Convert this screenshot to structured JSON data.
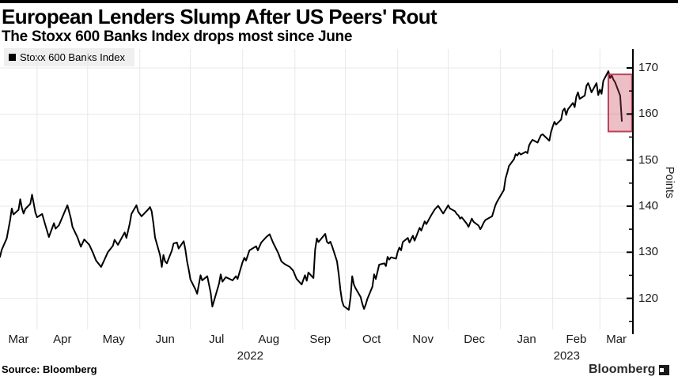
{
  "header": {
    "title": "European Lenders Slump After US Peers' Rout",
    "subtitle": "The Stoxx 600 Banks Index drops most since June"
  },
  "footer": {
    "source": "Source: Bloomberg",
    "brand": "Bloomberg"
  },
  "colors": {
    "line": "#000000",
    "grid": "#e8e8e8",
    "axis": "#000000",
    "legend_bg": "#efefef",
    "highlight_fill": "rgba(197,62,84,0.33)",
    "highlight_border": "#bc4257"
  },
  "chart_data": {
    "type": "line",
    "title": "European Lenders Slump After US Peers' Rout",
    "subtitle": "The Stoxx 600 Banks Index drops most since June",
    "ylabel": "Points",
    "yticks": [
      120,
      130,
      140,
      150,
      160,
      170
    ],
    "yticks_minor": [
      115,
      125,
      135,
      145,
      155,
      165
    ],
    "ylim": [
      113,
      174
    ],
    "xlim": [
      "2022-03-10",
      "2023-03-14"
    ],
    "xticks_months": [
      "Mar",
      "Apr",
      "May",
      "Jun",
      "Jul",
      "Aug",
      "Sep",
      "Oct",
      "Nov",
      "Dec",
      "Jan",
      "Feb",
      "Mar"
    ],
    "year_labels": [
      "2022",
      "2023"
    ],
    "grid": true,
    "legend_position": "top-left",
    "highlight_box": {
      "from": "2023-03-06",
      "to": "2023-03-20",
      "value_top": 168.6,
      "value_bottom": 156.2
    },
    "series": [
      {
        "name": "Stoxx 600 Banks Index",
        "color": "#000000",
        "points": [
          [
            "2022-03-10",
            129.0
          ],
          [
            "2022-03-11",
            130.5
          ],
          [
            "2022-03-14",
            133.0
          ],
          [
            "2022-03-16",
            137.0
          ],
          [
            "2022-03-17",
            139.5
          ],
          [
            "2022-03-18",
            138.2
          ],
          [
            "2022-03-21",
            139.2
          ],
          [
            "2022-03-22",
            141.5
          ],
          [
            "2022-03-23",
            139.6
          ],
          [
            "2022-03-24",
            138.4
          ],
          [
            "2022-03-25",
            139.4
          ],
          [
            "2022-03-28",
            140.5
          ],
          [
            "2022-03-29",
            142.5
          ],
          [
            "2022-03-30",
            140.6
          ],
          [
            "2022-03-31",
            138.6
          ],
          [
            "2022-04-01",
            137.6
          ],
          [
            "2022-04-04",
            138.3
          ],
          [
            "2022-04-06",
            135.8
          ],
          [
            "2022-04-08",
            133.3
          ],
          [
            "2022-04-11",
            136.3
          ],
          [
            "2022-04-12",
            135.1
          ],
          [
            "2022-04-14",
            135.9
          ],
          [
            "2022-04-19",
            140.2
          ],
          [
            "2022-04-21",
            137.4
          ],
          [
            "2022-04-22",
            135.5
          ],
          [
            "2022-04-25",
            133.2
          ],
          [
            "2022-04-27",
            131.2
          ],
          [
            "2022-04-29",
            132.8
          ],
          [
            "2022-05-02",
            131.6
          ],
          [
            "2022-05-04",
            130.0
          ],
          [
            "2022-05-06",
            128.2
          ],
          [
            "2022-05-09",
            126.8
          ],
          [
            "2022-05-11",
            128.4
          ],
          [
            "2022-05-13",
            130.0
          ],
          [
            "2022-05-16",
            131.4
          ],
          [
            "2022-05-17",
            132.7
          ],
          [
            "2022-05-19",
            131.6
          ],
          [
            "2022-05-23",
            134.3
          ],
          [
            "2022-05-24",
            133.1
          ],
          [
            "2022-05-26",
            136.2
          ],
          [
            "2022-05-27",
            138.3
          ],
          [
            "2022-05-30",
            140.2
          ],
          [
            "2022-05-31",
            138.8
          ],
          [
            "2022-06-02",
            137.8
          ],
          [
            "2022-06-06",
            139.3
          ],
          [
            "2022-06-07",
            139.8
          ],
          [
            "2022-06-08",
            138.9
          ],
          [
            "2022-06-09",
            136.4
          ],
          [
            "2022-06-10",
            133.2
          ],
          [
            "2022-06-13",
            129.3
          ],
          [
            "2022-06-14",
            126.8
          ],
          [
            "2022-06-15",
            129.4
          ],
          [
            "2022-06-16",
            128.0
          ],
          [
            "2022-06-17",
            127.6
          ],
          [
            "2022-06-20",
            130.4
          ],
          [
            "2022-06-21",
            131.9
          ],
          [
            "2022-06-23",
            132.1
          ],
          [
            "2022-06-24",
            130.8
          ],
          [
            "2022-06-27",
            132.4
          ],
          [
            "2022-06-28",
            130.6
          ],
          [
            "2022-06-29",
            128.1
          ],
          [
            "2022-06-30",
            126.2
          ],
          [
            "2022-07-01",
            124.1
          ],
          [
            "2022-07-04",
            121.9
          ],
          [
            "2022-07-05",
            121.0
          ],
          [
            "2022-07-07",
            125.0
          ],
          [
            "2022-07-08",
            123.9
          ],
          [
            "2022-07-11",
            124.8
          ],
          [
            "2022-07-13",
            121.2
          ],
          [
            "2022-07-14",
            118.2
          ],
          [
            "2022-07-18",
            123.2
          ],
          [
            "2022-07-19",
            125.2
          ],
          [
            "2022-07-20",
            123.6
          ],
          [
            "2022-07-22",
            124.6
          ],
          [
            "2022-07-26",
            123.9
          ],
          [
            "2022-07-28",
            124.8
          ],
          [
            "2022-07-29",
            124.2
          ],
          [
            "2022-08-01",
            127.9
          ],
          [
            "2022-08-02",
            128.8
          ],
          [
            "2022-08-03",
            128.2
          ],
          [
            "2022-08-05",
            130.4
          ],
          [
            "2022-08-09",
            131.3
          ],
          [
            "2022-08-10",
            130.4
          ],
          [
            "2022-08-12",
            132.1
          ],
          [
            "2022-08-15",
            133.3
          ],
          [
            "2022-08-17",
            133.9
          ],
          [
            "2022-08-19",
            132.1
          ],
          [
            "2022-08-22",
            129.9
          ],
          [
            "2022-08-24",
            128.0
          ],
          [
            "2022-08-26",
            127.4
          ],
          [
            "2022-08-29",
            126.8
          ],
          [
            "2022-08-31",
            126.0
          ],
          [
            "2022-09-02",
            124.2
          ],
          [
            "2022-09-05",
            123.0
          ],
          [
            "2022-09-07",
            125.0
          ],
          [
            "2022-09-08",
            123.8
          ],
          [
            "2022-09-09",
            125.6
          ],
          [
            "2022-09-12",
            124.4
          ],
          [
            "2022-09-13",
            130.5
          ],
          [
            "2022-09-14",
            133.0
          ],
          [
            "2022-09-15",
            132.2
          ],
          [
            "2022-09-19",
            134.0
          ],
          [
            "2022-09-20",
            132.3
          ],
          [
            "2022-09-21",
            131.9
          ],
          [
            "2022-09-22",
            132.3
          ],
          [
            "2022-09-23",
            131.4
          ],
          [
            "2022-09-26",
            128.0
          ],
          [
            "2022-09-27",
            125.3
          ],
          [
            "2022-09-28",
            121.8
          ],
          [
            "2022-09-29",
            119.4
          ],
          [
            "2022-09-30",
            118.3
          ],
          [
            "2022-10-03",
            117.5
          ],
          [
            "2022-10-04",
            120.2
          ],
          [
            "2022-10-05",
            124.8
          ],
          [
            "2022-10-06",
            123.0
          ],
          [
            "2022-10-07",
            122.2
          ],
          [
            "2022-10-10",
            120.3
          ],
          [
            "2022-10-11",
            118.8
          ],
          [
            "2022-10-12",
            117.7
          ],
          [
            "2022-10-13",
            118.6
          ],
          [
            "2022-10-14",
            119.9
          ],
          [
            "2022-10-17",
            122.5
          ],
          [
            "2022-10-18",
            125.2
          ],
          [
            "2022-10-19",
            124.2
          ],
          [
            "2022-10-21",
            127.3
          ],
          [
            "2022-10-24",
            127.6
          ],
          [
            "2022-10-25",
            127.0
          ],
          [
            "2022-10-26",
            129.0
          ],
          [
            "2022-10-27",
            128.4
          ],
          [
            "2022-10-28",
            128.9
          ],
          [
            "2022-10-31",
            128.6
          ],
          [
            "2022-11-01",
            130.1
          ],
          [
            "2022-11-02",
            131.0
          ],
          [
            "2022-11-03",
            130.4
          ],
          [
            "2022-11-04",
            132.2
          ],
          [
            "2022-11-07",
            133.1
          ],
          [
            "2022-11-08",
            132.1
          ],
          [
            "2022-11-10",
            133.6
          ],
          [
            "2022-11-11",
            132.5
          ],
          [
            "2022-11-14",
            135.3
          ],
          [
            "2022-11-15",
            134.7
          ],
          [
            "2022-11-17",
            136.7
          ],
          [
            "2022-11-18",
            136.1
          ],
          [
            "2022-11-21",
            138.1
          ],
          [
            "2022-11-23",
            139.3
          ],
          [
            "2022-11-25",
            140.1
          ],
          [
            "2022-11-28",
            138.4
          ],
          [
            "2022-11-30",
            139.6
          ],
          [
            "2022-12-01",
            140.2
          ],
          [
            "2022-12-02",
            139.5
          ],
          [
            "2022-12-05",
            138.9
          ],
          [
            "2022-12-06",
            138.3
          ],
          [
            "2022-12-07",
            138.0
          ],
          [
            "2022-12-08",
            137.3
          ],
          [
            "2022-12-09",
            137.6
          ],
          [
            "2022-12-12",
            136.2
          ],
          [
            "2022-12-13",
            135.5
          ],
          [
            "2022-12-15",
            137.3
          ],
          [
            "2022-12-16",
            136.6
          ],
          [
            "2022-12-19",
            135.8
          ],
          [
            "2022-12-20",
            135.0
          ],
          [
            "2022-12-21",
            135.6
          ],
          [
            "2022-12-22",
            136.4
          ],
          [
            "2022-12-23",
            137.0
          ],
          [
            "2022-12-27",
            137.8
          ],
          [
            "2022-12-28",
            139.0
          ],
          [
            "2022-12-29",
            140.2
          ],
          [
            "2022-12-30",
            141.0
          ],
          [
            "2023-01-03",
            143.5
          ],
          [
            "2023-01-04",
            146.0
          ],
          [
            "2023-01-05",
            147.3
          ],
          [
            "2023-01-06",
            148.7
          ],
          [
            "2023-01-09",
            150.2
          ],
          [
            "2023-01-10",
            151.3
          ],
          [
            "2023-01-11",
            151.0
          ],
          [
            "2023-01-12",
            151.6
          ],
          [
            "2023-01-13",
            151.2
          ],
          [
            "2023-01-16",
            151.8
          ],
          [
            "2023-01-17",
            151.5
          ],
          [
            "2023-01-18",
            153.2
          ],
          [
            "2023-01-19",
            153.9
          ],
          [
            "2023-01-20",
            154.4
          ],
          [
            "2023-01-23",
            153.8
          ],
          [
            "2023-01-24",
            154.6
          ],
          [
            "2023-01-25",
            155.4
          ],
          [
            "2023-01-26",
            155.6
          ],
          [
            "2023-01-30",
            154.2
          ],
          [
            "2023-01-31",
            156.1
          ],
          [
            "2023-02-01",
            157.3
          ],
          [
            "2023-02-02",
            158.3
          ],
          [
            "2023-02-03",
            157.7
          ],
          [
            "2023-02-06",
            158.8
          ],
          [
            "2023-02-07",
            160.7
          ],
          [
            "2023-02-08",
            161.2
          ],
          [
            "2023-02-09",
            159.8
          ],
          [
            "2023-02-10",
            161.0
          ],
          [
            "2023-02-13",
            162.4
          ],
          [
            "2023-02-14",
            161.5
          ],
          [
            "2023-02-15",
            163.8
          ],
          [
            "2023-02-16",
            164.7
          ],
          [
            "2023-02-17",
            163.3
          ],
          [
            "2023-02-20",
            164.0
          ],
          [
            "2023-02-21",
            166.1
          ],
          [
            "2023-02-22",
            166.7
          ],
          [
            "2023-02-23",
            165.8
          ],
          [
            "2023-02-24",
            164.7
          ],
          [
            "2023-02-27",
            166.7
          ],
          [
            "2023-02-28",
            164.1
          ],
          [
            "2023-03-01",
            165.3
          ],
          [
            "2023-03-02",
            164.4
          ],
          [
            "2023-03-03",
            167.2
          ],
          [
            "2023-03-06",
            169.3
          ],
          [
            "2023-03-07",
            167.8
          ],
          [
            "2023-03-08",
            168.4
          ],
          [
            "2023-03-09",
            167.5
          ],
          [
            "2023-03-10",
            166.9
          ],
          [
            "2023-03-13",
            164.0
          ],
          [
            "2023-03-14",
            158.5
          ]
        ]
      }
    ]
  }
}
